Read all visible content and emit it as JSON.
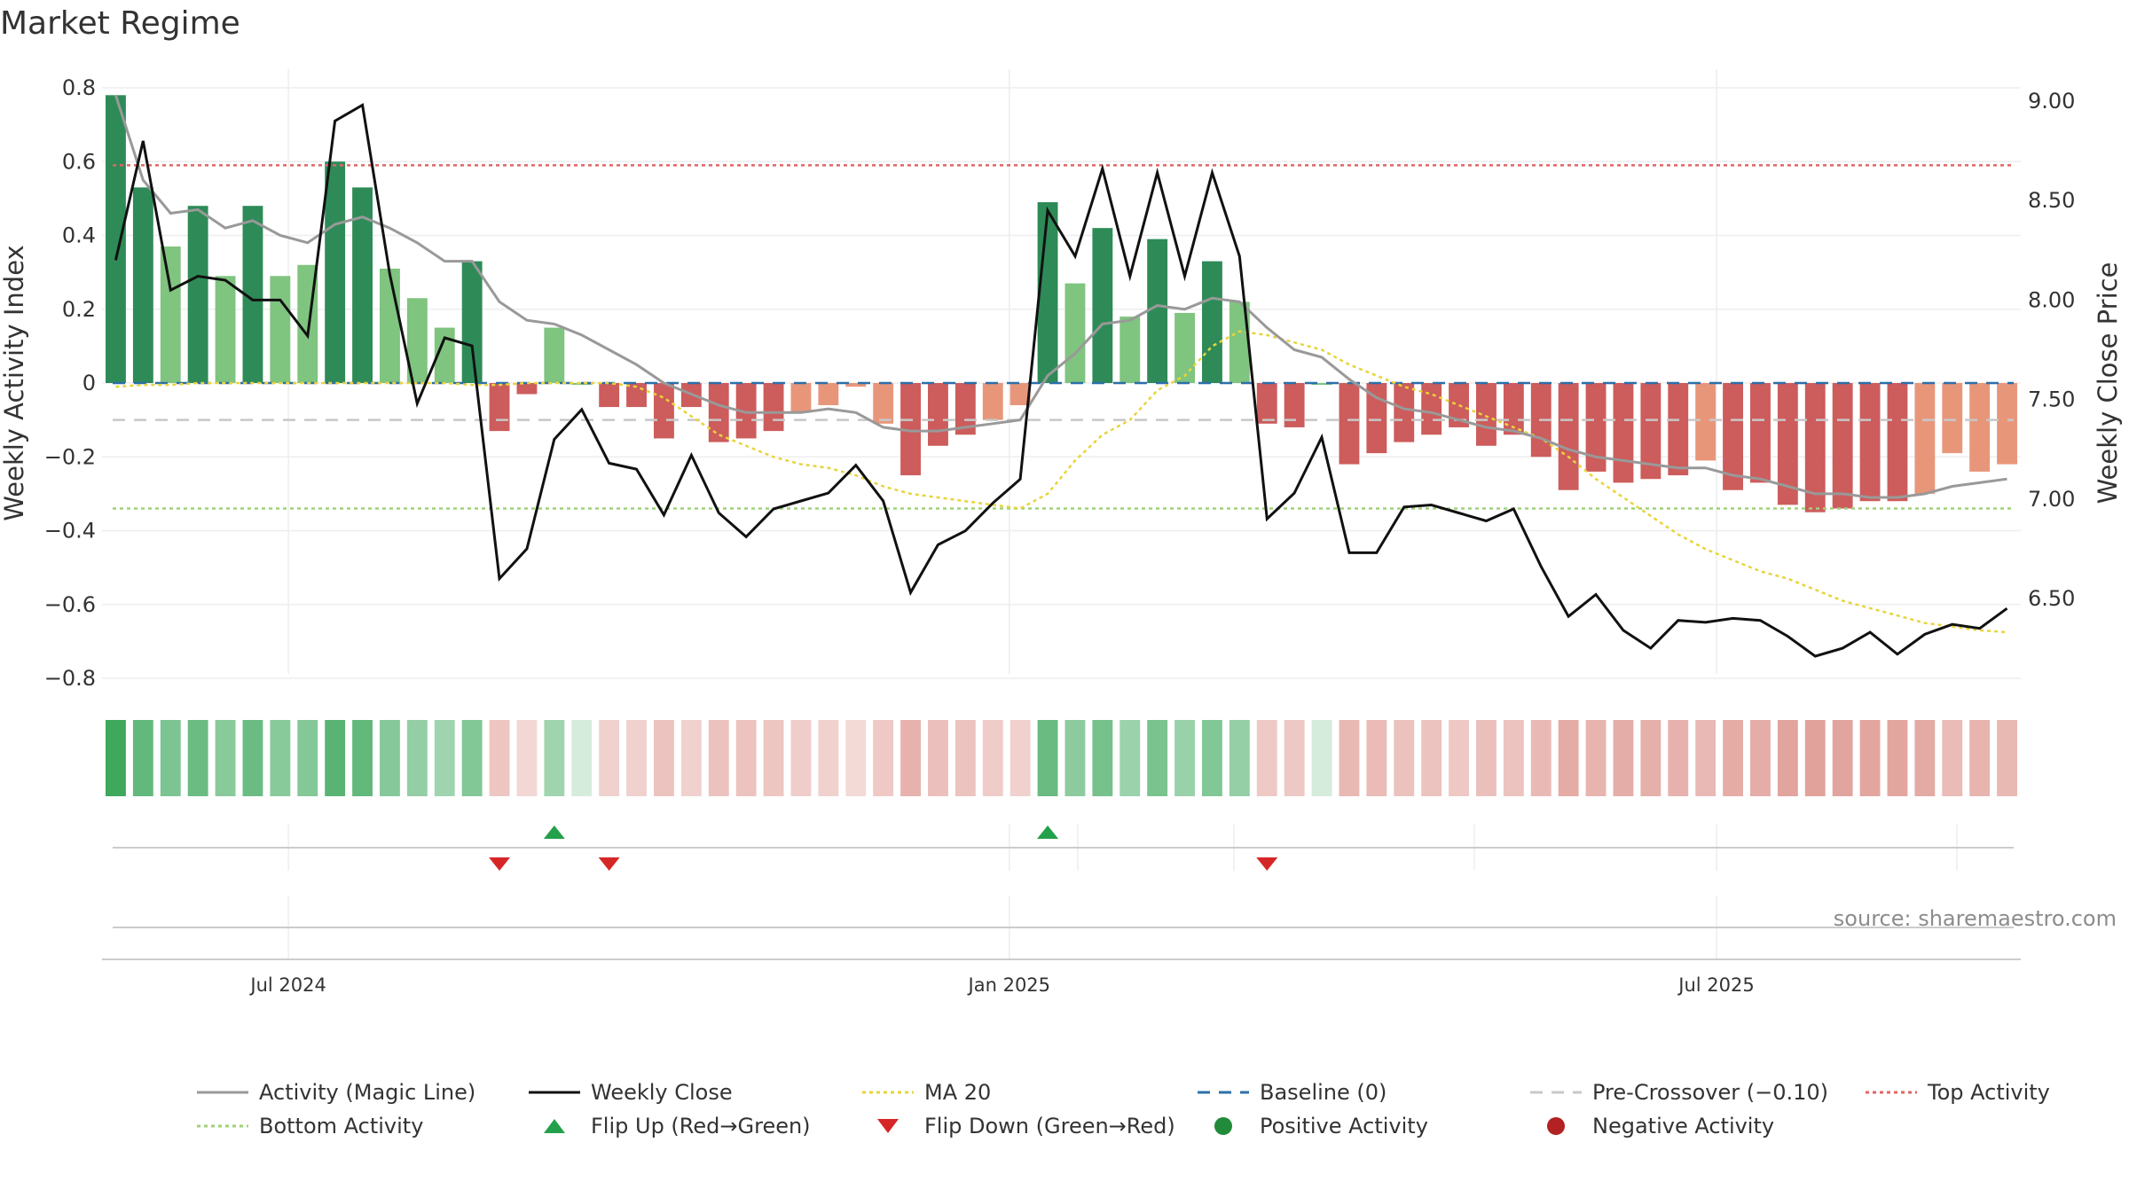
{
  "chart_data": {
    "type": "bar+line",
    "title": "Market Regime",
    "source": "source: sharemaestro.com",
    "left_axis": {
      "label": "Weekly Activity Index",
      "range": [
        -0.85,
        0.8
      ],
      "ticks": [
        0.8,
        0.6,
        0.4,
        0.2,
        0,
        -0.2,
        -0.4,
        -0.6,
        -0.8
      ],
      "tick_labels": [
        "0.8",
        "0.6",
        "0.4",
        "0.2",
        "0",
        "−0.2",
        "−0.4",
        "−0.6",
        "−0.8"
      ]
    },
    "right_axis": {
      "label": "Weekly Close Price",
      "range": [
        6.0,
        9.2
      ],
      "ticks": [
        9.0,
        8.5,
        8.0,
        7.5,
        7.0,
        6.5
      ],
      "tick_labels": [
        "9.00",
        "8.50",
        "8.00",
        "7.50",
        "7.00",
        "6.50"
      ]
    },
    "x_axis": {
      "tick_positions": [
        6.3,
        32.6,
        58.4
      ],
      "tick_labels": [
        "Jul 2024",
        "Jan 2025",
        "Jul 2025"
      ]
    },
    "activity": [
      0.78,
      0.53,
      0.37,
      0.48,
      0.29,
      0.48,
      0.29,
      0.32,
      0.6,
      0.53,
      0.31,
      0.23,
      0.15,
      0.33,
      -0.13,
      -0.03,
      0.15,
      0.0,
      -0.065,
      -0.065,
      -0.15,
      -0.065,
      -0.16,
      -0.15,
      -0.13,
      -0.08,
      -0.06,
      -0.01,
      -0.11,
      -0.25,
      -0.17,
      -0.14,
      -0.1,
      -0.06,
      0.49,
      0.27,
      0.42,
      0.18,
      0.39,
      0.19,
      0.33,
      0.22,
      -0.11,
      -0.12,
      0.0,
      -0.22,
      -0.19,
      -0.16,
      -0.14,
      -0.12,
      -0.17,
      -0.14,
      -0.2,
      -0.29,
      -0.24,
      -0.27,
      -0.26,
      -0.25,
      -0.21,
      -0.29,
      -0.27,
      -0.33,
      -0.35,
      -0.34,
      -0.32,
      -0.32,
      -0.3,
      -0.19,
      -0.24,
      -0.22
    ],
    "magic_line": [
      0.78,
      0.55,
      0.46,
      0.47,
      0.42,
      0.44,
      0.4,
      0.38,
      0.43,
      0.45,
      0.42,
      0.38,
      0.33,
      0.33,
      0.22,
      0.17,
      0.16,
      0.13,
      0.09,
      0.05,
      0.0,
      -0.03,
      -0.06,
      -0.08,
      -0.08,
      -0.08,
      -0.07,
      -0.08,
      -0.12,
      -0.13,
      -0.13,
      -0.12,
      -0.11,
      -0.1,
      0.02,
      0.08,
      0.16,
      0.17,
      0.21,
      0.2,
      0.23,
      0.22,
      0.15,
      0.09,
      0.07,
      0.01,
      -0.04,
      -0.07,
      -0.08,
      -0.1,
      -0.12,
      -0.13,
      -0.15,
      -0.18,
      -0.2,
      -0.21,
      -0.22,
      -0.23,
      -0.23,
      -0.25,
      -0.26,
      -0.28,
      -0.3,
      -0.3,
      -0.31,
      -0.31,
      -0.3,
      -0.28,
      -0.27,
      -0.26
    ],
    "weekly_close": [
      8.2,
      8.8,
      8.05,
      8.12,
      8.1,
      8.0,
      8.0,
      7.82,
      8.9,
      8.98,
      8.13,
      7.48,
      7.81,
      7.77,
      6.6,
      6.75,
      7.3,
      7.45,
      7.18,
      7.15,
      6.92,
      7.22,
      6.93,
      6.81,
      6.95,
      6.99,
      7.03,
      7.17,
      6.99,
      6.53,
      6.77,
      6.84,
      6.98,
      7.1,
      8.45,
      8.22,
      8.66,
      8.12,
      8.64,
      8.12,
      8.64,
      8.22,
      6.9,
      7.03,
      7.31,
      6.73,
      6.73,
      6.96,
      6.97,
      6.93,
      6.89,
      6.95,
      6.66,
      6.41,
      6.52,
      6.34,
      6.25,
      6.39,
      6.38,
      6.4,
      6.39,
      6.31,
      6.21,
      6.25,
      6.33,
      6.22,
      6.32,
      6.37,
      6.35,
      6.45
    ],
    "ma20": [
      -0.01,
      -0.005,
      -0.005,
      0,
      0,
      0,
      0,
      0,
      0,
      0,
      0,
      0,
      0,
      -0.005,
      -0.005,
      0,
      0,
      0,
      0,
      -0.01,
      -0.04,
      -0.09,
      -0.14,
      -0.17,
      -0.2,
      -0.22,
      -0.23,
      -0.25,
      -0.28,
      -0.3,
      -0.31,
      -0.32,
      -0.33,
      -0.34,
      -0.3,
      -0.21,
      -0.14,
      -0.1,
      -0.02,
      0.02,
      0.1,
      0.14,
      0.13,
      0.11,
      0.09,
      0.05,
      0.02,
      -0.01,
      -0.03,
      -0.06,
      -0.09,
      -0.12,
      -0.15,
      -0.2,
      -0.26,
      -0.31,
      -0.36,
      -0.41,
      -0.45,
      -0.48,
      -0.51,
      -0.53,
      -0.56,
      -0.59,
      -0.61,
      -0.63,
      -0.65,
      -0.66,
      -0.67,
      -0.675
    ],
    "reference_lines": {
      "baseline": 0,
      "pre_crossover": -0.1,
      "top_activity": 0.59,
      "bottom_activity": -0.34
    },
    "flip_up_weeks": [
      16,
      34
    ],
    "flip_down_weeks": [
      14,
      18,
      42
    ],
    "legend": [
      {
        "label": "Activity (Magic Line)",
        "kind": "line",
        "color": "#999999",
        "dash": ""
      },
      {
        "label": "Weekly Close",
        "kind": "line",
        "color": "#111111",
        "dash": ""
      },
      {
        "label": "MA 20",
        "kind": "line",
        "color": "#e8d43a",
        "dash": "4 4"
      },
      {
        "label": "Baseline (0)",
        "kind": "line",
        "color": "#2c6fa8",
        "dash": "14 10"
      },
      {
        "label": "Pre-Crossover (−0.10)",
        "kind": "line",
        "color": "#c8c8c8",
        "dash": "14 10"
      },
      {
        "label": "Top Activity",
        "kind": "line",
        "color": "#e06666",
        "dash": "4 4"
      },
      {
        "label": "Bottom Activity",
        "kind": "line",
        "color": "#9fd27a",
        "dash": "4 4"
      },
      {
        "label": "Flip Up (Red→Green)",
        "kind": "triangle-up",
        "color": "#22a04a",
        "dash": ""
      },
      {
        "label": "Flip Down (Green→Red)",
        "kind": "triangle-down",
        "color": "#d62728",
        "dash": ""
      },
      {
        "label": "Positive Activity",
        "kind": "dot",
        "color": "#228b3a",
        "dash": ""
      },
      {
        "label": "Negative Activity",
        "kind": "dot",
        "color": "#b22222",
        "dash": ""
      }
    ],
    "colors": {
      "pos_strong": "#2e8b57",
      "pos_light": "#7fc47f",
      "neg_strong": "#cd5c5c",
      "neg_light": "#e8967a"
    }
  }
}
